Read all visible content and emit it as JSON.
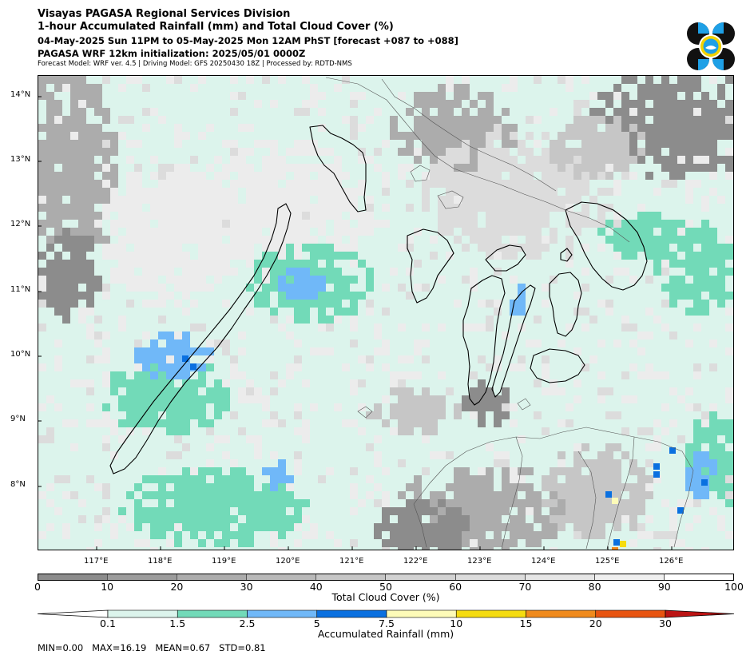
{
  "header": {
    "title": "Visayas PAGASA Regional Services Division",
    "subtitle": "1-hour Accumulated Rainfall (mm) and Total Cloud Cover (%)",
    "time_range": "04-May-2025 Sun 11PM to 05-May-2025 Mon 12AM PhST [forecast +087 to +088]",
    "init": "PAGASA WRF 12km initialization: 2025/05/01 0000Z",
    "model_info": "Forecast Model: WRF ver. 4.5 | Driving Model: GFS 20250430 18Z | Processed by: RDTD-NMS"
  },
  "logo": {
    "icon": "pagasa-logo-icon",
    "colors": [
      "#111111",
      "#1ea0e6",
      "#ffffff",
      "#f2d200"
    ]
  },
  "map": {
    "lat_labels": [
      "14°N",
      "13°N",
      "12°N",
      "11°N",
      "10°N",
      "9°N",
      "8°N"
    ],
    "lon_labels": [
      "117°E",
      "118°E",
      "119°E",
      "120°E",
      "121°E",
      "122°E",
      "123°E",
      "124°E",
      "125°E",
      "126°E"
    ]
  },
  "cloud_colorbar": {
    "title": "Total Cloud Cover (%)",
    "ticks": [
      "0",
      "10",
      "20",
      "30",
      "40",
      "50",
      "60",
      "70",
      "80",
      "90",
      "100"
    ],
    "colors": [
      "#8c8c8c",
      "#9c9c9c",
      "#acacac",
      "#b9b9b9",
      "#c6c6c6",
      "#d2d2d2",
      "#dcdcdc",
      "#e6e6e6",
      "#efefef",
      "#ffffff"
    ]
  },
  "rain_colorbar": {
    "title": "Accumulated Rainfall (mm)",
    "ticks": [
      "0.1",
      "1.5",
      "2.5",
      "5",
      "7.5",
      "10",
      "15",
      "20",
      "30"
    ],
    "colors": [
      "#ffffff",
      "#dcf4ec",
      "#72dab8",
      "#70b8f8",
      "#0a70e0",
      "#fdfbb8",
      "#f5dc10",
      "#f08a1c",
      "#e85410",
      "#bb1414"
    ]
  },
  "stats": {
    "text": "MIN=0.00   MAX=16.19   MEAN=0.67   STD=0.81"
  }
}
